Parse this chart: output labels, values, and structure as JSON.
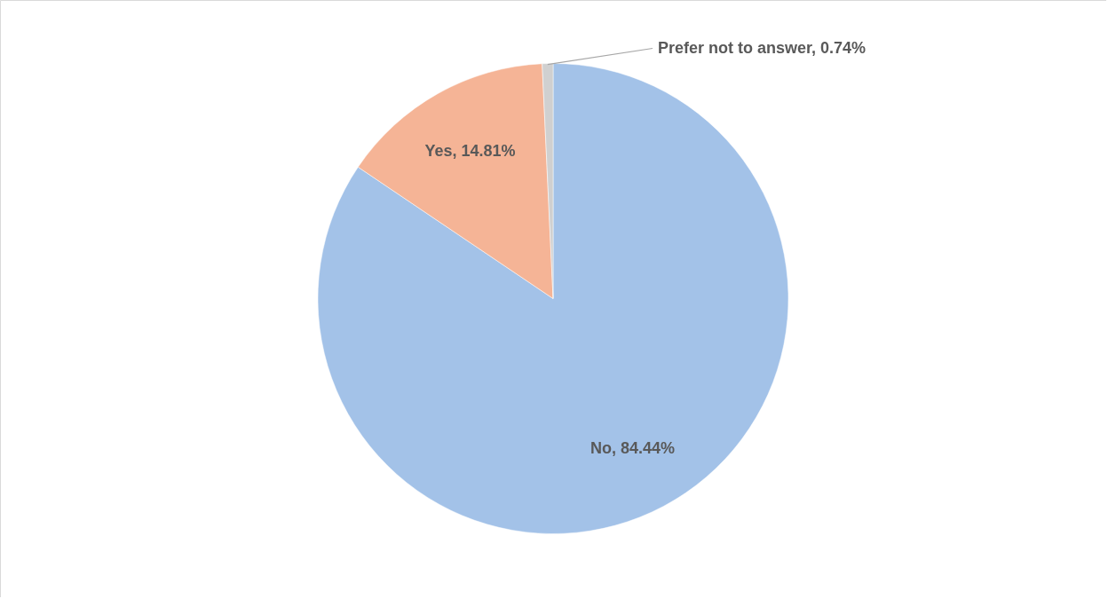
{
  "chart_data": {
    "type": "pie",
    "categories": [
      "No",
      "Yes",
      "Prefer not to answer"
    ],
    "values": [
      84.44,
      14.81,
      0.74
    ],
    "colors": [
      "#a3c2e8",
      "#f5b496",
      "#d0d0d0"
    ],
    "value_labels": [
      "84.44%",
      "14.81%",
      "0.74%"
    ]
  }
}
